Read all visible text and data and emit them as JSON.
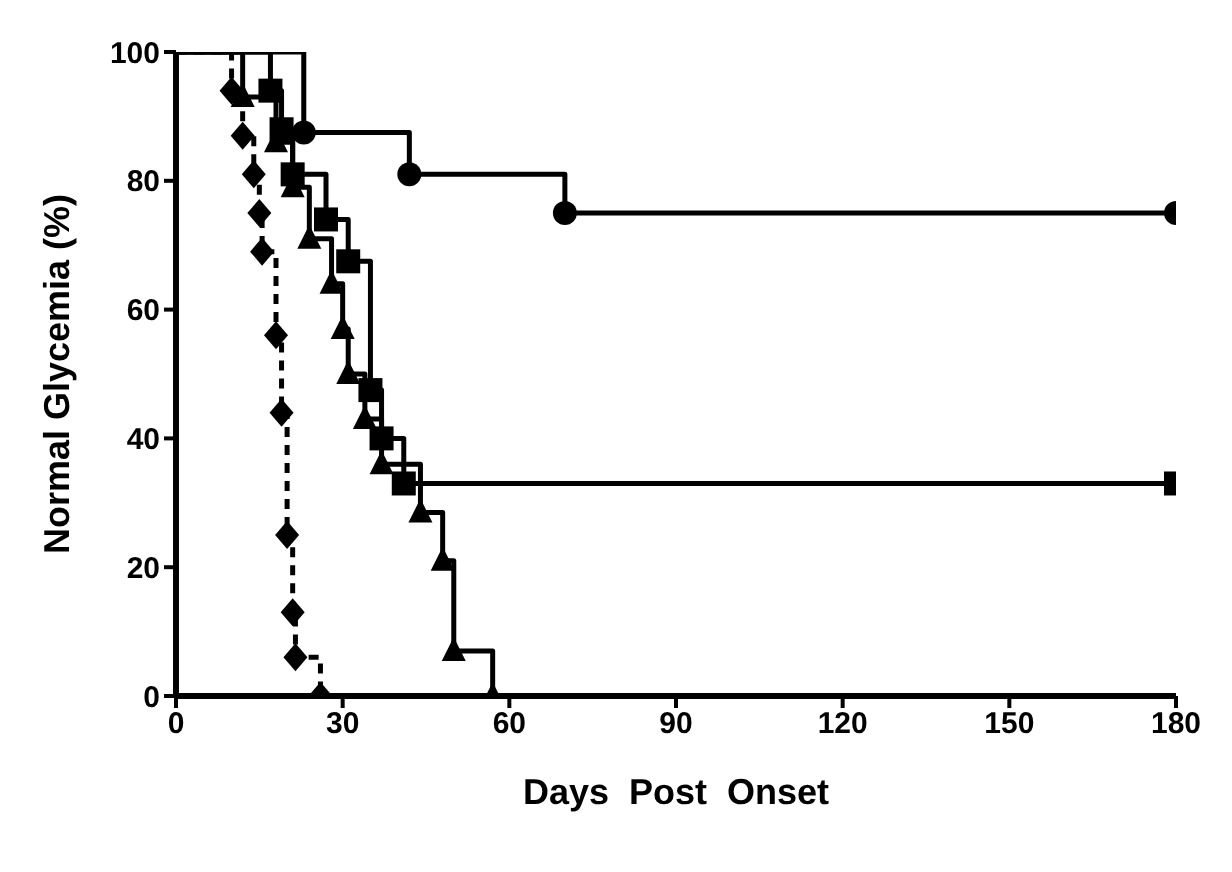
{
  "chart_data": {
    "type": "step",
    "xlabel": "Days  Post  Onset",
    "ylabel": "Normal Glycemia (%)",
    "xlim": [
      0,
      180
    ],
    "xticks": [
      0,
      30,
      60,
      90,
      120,
      150,
      180
    ],
    "ylim": [
      0,
      100
    ],
    "yticks": [
      0,
      20,
      40,
      60,
      80,
      100
    ],
    "series": [
      {
        "color": "#000000",
        "marker": "circle",
        "line_style": "solid",
        "x": [
          0,
          23,
          42,
          70,
          180
        ],
        "values": [
          100,
          87.5,
          81,
          75,
          75
        ]
      },
      {
        "color": "#000000",
        "marker": "square",
        "line_style": "solid",
        "x": [
          0,
          17,
          19,
          21,
          27,
          31,
          35,
          37,
          41,
          180
        ],
        "values": [
          100,
          94,
          88,
          81,
          74,
          67.5,
          47.5,
          40,
          33,
          33
        ]
      },
      {
        "color": "#000000",
        "marker": "triangle",
        "line_style": "solid",
        "x": [
          0,
          12,
          18,
          21,
          24,
          28,
          30,
          31,
          34,
          37,
          44,
          48,
          50,
          57
        ],
        "values": [
          100,
          93,
          86,
          79,
          71,
          64,
          57,
          50,
          43,
          36,
          28.5,
          21,
          7,
          0
        ]
      },
      {
        "color": "#000000",
        "marker": "diamond",
        "line_style": "dashed",
        "x": [
          0,
          10,
          12,
          14,
          15,
          15.5,
          18,
          19,
          20,
          21,
          21.5,
          26
        ],
        "values": [
          100,
          94,
          87,
          81,
          75,
          69,
          56,
          44,
          25,
          13,
          6,
          0
        ]
      }
    ]
  }
}
